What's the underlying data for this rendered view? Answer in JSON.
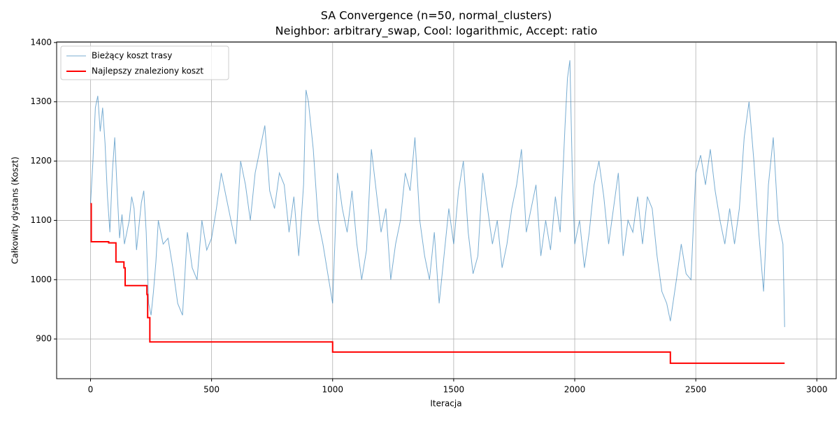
{
  "chart_data": {
    "type": "line",
    "title": "SA Convergence (n=50, normal_clusters)",
    "subtitle": "Neighbor: arbitrary_swap, Cool: logarithmic, Accept: ratio",
    "x_label": "Iteracja",
    "y_label": "Całkowity dystans (Koszt)",
    "xlim": [
      -140,
      3080
    ],
    "ylim": [
      833,
      1401
    ],
    "xticks": [
      0,
      500,
      1000,
      1500,
      2000,
      2500,
      3000
    ],
    "yticks": [
      900,
      1000,
      1100,
      1200,
      1300,
      1400
    ],
    "grid": true,
    "legend_position": "upper-left",
    "series": [
      {
        "name": "Bieżący koszt trasy",
        "color": "#1f77b4",
        "line_width": 1,
        "opacity": 0.6,
        "drawstyle": "default",
        "x": [
          0,
          10,
          20,
          30,
          40,
          50,
          60,
          70,
          80,
          90,
          100,
          110,
          120,
          130,
          140,
          150,
          160,
          170,
          180,
          190,
          200,
          210,
          220,
          230,
          240,
          250,
          260,
          270,
          280,
          300,
          320,
          340,
          360,
          380,
          400,
          420,
          440,
          460,
          480,
          500,
          520,
          540,
          560,
          580,
          600,
          620,
          640,
          660,
          680,
          700,
          720,
          740,
          760,
          780,
          800,
          820,
          840,
          860,
          880,
          890,
          900,
          920,
          940,
          960,
          980,
          1000,
          1020,
          1040,
          1060,
          1080,
          1100,
          1120,
          1140,
          1160,
          1180,
          1200,
          1220,
          1240,
          1260,
          1280,
          1300,
          1320,
          1340,
          1360,
          1380,
          1400,
          1420,
          1440,
          1460,
          1480,
          1500,
          1520,
          1540,
          1560,
          1580,
          1600,
          1620,
          1640,
          1660,
          1680,
          1700,
          1720,
          1740,
          1760,
          1780,
          1800,
          1820,
          1840,
          1860,
          1880,
          1900,
          1920,
          1940,
          1960,
          1970,
          1980,
          1990,
          2000,
          2020,
          2040,
          2060,
          2080,
          2100,
          2120,
          2140,
          2160,
          2180,
          2200,
          2220,
          2240,
          2260,
          2280,
          2300,
          2320,
          2340,
          2360,
          2380,
          2395,
          2420,
          2440,
          2460,
          2480,
          2500,
          2520,
          2540,
          2560,
          2580,
          2600,
          2620,
          2640,
          2660,
          2680,
          2700,
          2720,
          2740,
          2760,
          2780,
          2800,
          2820,
          2840,
          2860,
          2867
        ],
        "values": [
          1128,
          1200,
          1290,
          1310,
          1250,
          1290,
          1230,
          1140,
          1080,
          1180,
          1240,
          1150,
          1070,
          1110,
          1060,
          1080,
          1100,
          1140,
          1120,
          1050,
          1090,
          1130,
          1150,
          1080,
          960,
          940,
          980,
          1030,
          1100,
          1060,
          1070,
          1020,
          960,
          940,
          1080,
          1020,
          1000,
          1100,
          1050,
          1070,
          1120,
          1180,
          1140,
          1100,
          1060,
          1200,
          1160,
          1100,
          1180,
          1220,
          1260,
          1150,
          1120,
          1180,
          1160,
          1080,
          1140,
          1040,
          1160,
          1320,
          1300,
          1220,
          1100,
          1060,
          1010,
          960,
          1180,
          1120,
          1080,
          1150,
          1060,
          1000,
          1050,
          1220,
          1150,
          1080,
          1120,
          1000,
          1060,
          1100,
          1180,
          1150,
          1240,
          1100,
          1040,
          1000,
          1080,
          960,
          1040,
          1120,
          1060,
          1150,
          1200,
          1080,
          1010,
          1040,
          1180,
          1120,
          1060,
          1100,
          1020,
          1060,
          1120,
          1160,
          1220,
          1080,
          1120,
          1160,
          1040,
          1100,
          1050,
          1140,
          1080,
          1260,
          1340,
          1370,
          1180,
          1060,
          1100,
          1020,
          1080,
          1160,
          1200,
          1140,
          1060,
          1120,
          1180,
          1040,
          1100,
          1080,
          1140,
          1060,
          1140,
          1120,
          1040,
          980,
          960,
          930,
          1000,
          1060,
          1010,
          1000,
          1180,
          1210,
          1160,
          1220,
          1150,
          1100,
          1060,
          1120,
          1060,
          1120,
          1240,
          1300,
          1200,
          1080,
          980,
          1160,
          1240,
          1100,
          1060,
          920
        ]
      },
      {
        "name": "Najlepszy znaleziony koszt",
        "color": "#ff0000",
        "line_width": 2,
        "opacity": 1,
        "drawstyle": "steps-post",
        "x": [
          0,
          3,
          75,
          105,
          138,
          143,
          233,
          236,
          245,
          1000,
          2395,
          2867
        ],
        "values": [
          1128,
          1064,
          1062,
          1030,
          1020,
          990,
          975,
          936,
          895,
          878,
          859,
          859
        ]
      }
    ]
  }
}
